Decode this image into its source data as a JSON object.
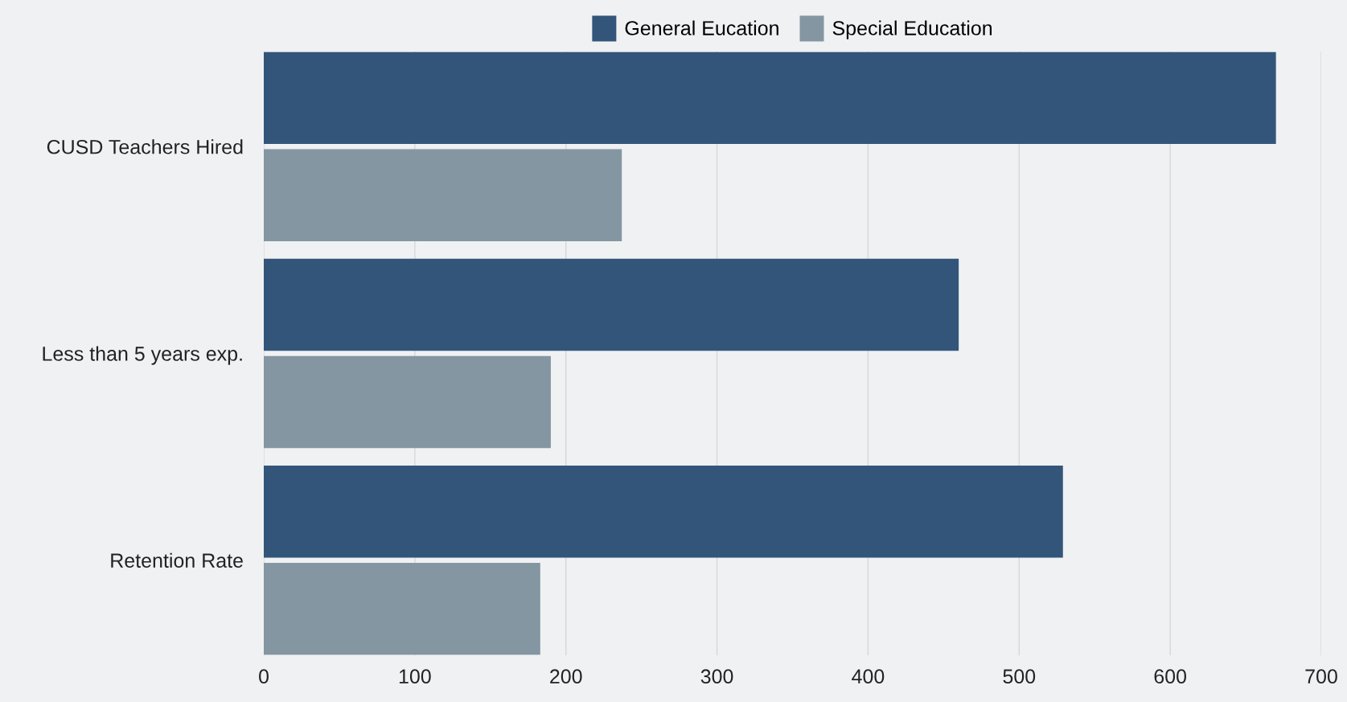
{
  "chart_data": {
    "type": "bar",
    "orientation": "horizontal",
    "categories": [
      "CUSD Teachers Hired",
      "Less than 5 years exp.",
      "Retention Rate"
    ],
    "series": [
      {
        "name": "General Eucation",
        "color": "#33557a",
        "values": [
          670,
          460,
          529
        ]
      },
      {
        "name": "Special Education",
        "color": "#8496a1",
        "values": [
          237,
          190,
          183
        ]
      }
    ],
    "xlim": [
      0,
      700
    ],
    "xticks": [
      0,
      100,
      200,
      300,
      400,
      500,
      600,
      700
    ],
    "grid": "x",
    "legend": "top"
  }
}
